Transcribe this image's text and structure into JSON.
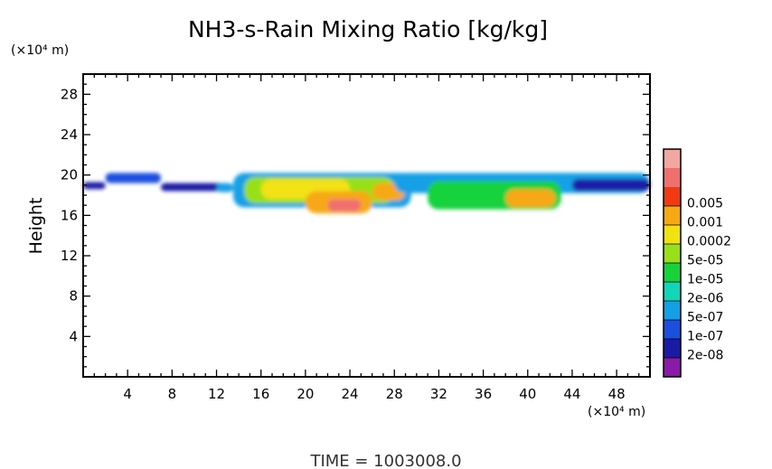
{
  "chart_data": {
    "type": "heatmap",
    "title": "NH3-s-Rain Mixing Ratio [kg/kg]",
    "ylabel": "Height",
    "y_unit": "(×10⁴ m)",
    "x_unit": "(×10⁴ m)",
    "xlim": [
      0,
      51
    ],
    "ylim": [
      0,
      30
    ],
    "x_ticks": [
      4,
      8,
      12,
      16,
      20,
      24,
      28,
      32,
      36,
      40,
      44,
      48
    ],
    "y_ticks": [
      4,
      8,
      12,
      16,
      20,
      24,
      28
    ],
    "colorbar": {
      "levels": [
        "2e-08",
        "1e-07",
        "5e-07",
        "2e-06",
        "1e-05",
        "5e-05",
        "0.0002",
        "0.001",
        "0.005"
      ],
      "colors": [
        "#8a1aa8",
        "#1a1aa6",
        "#1a4fe0",
        "#14a0e6",
        "#12d6b8",
        "#18d23c",
        "#98e018",
        "#f2e212",
        "#f7a812",
        "#f23a12",
        "#f07070",
        "#f2a8a0"
      ]
    },
    "field": [
      {
        "x": [
          0,
          2
        ],
        "y": [
          18.6,
          19.3
        ],
        "level": 1
      },
      {
        "x": [
          2,
          7
        ],
        "y": [
          19.2,
          20.2
        ],
        "level": 2
      },
      {
        "x": [
          7,
          13
        ],
        "y": [
          18.4,
          19.2
        ],
        "level": 1
      },
      {
        "x": [
          12,
          13.5
        ],
        "y": [
          18.3,
          19.2
        ],
        "level": 3
      },
      {
        "x": [
          13.5,
          29.5
        ],
        "y": [
          16.8,
          20.2
        ],
        "level": 3
      },
      {
        "x": [
          14.5,
          28
        ],
        "y": [
          17.2,
          19.8
        ],
        "level": 6
      },
      {
        "x": [
          16,
          24
        ],
        "y": [
          17.6,
          19.6
        ],
        "level": 7
      },
      {
        "x": [
          20,
          26
        ],
        "y": [
          16.2,
          18.4
        ],
        "level": 8
      },
      {
        "x": [
          22,
          25
        ],
        "y": [
          16.4,
          17.6
        ],
        "level": 10
      },
      {
        "x": [
          26,
          29
        ],
        "y": [
          17.5,
          19.2
        ],
        "level": 8
      },
      {
        "x": [
          28,
          51
        ],
        "y": [
          18.2,
          20.2
        ],
        "level": 3
      },
      {
        "x": [
          31,
          43
        ],
        "y": [
          16.6,
          19.4
        ],
        "level": 5
      },
      {
        "x": [
          38,
          42.5
        ],
        "y": [
          16.8,
          18.6
        ],
        "level": 8
      },
      {
        "x": [
          44,
          51
        ],
        "y": [
          18.4,
          19.6
        ],
        "level": 1
      }
    ]
  },
  "footer": {
    "time_label": "TIME  =  1003008.0"
  }
}
